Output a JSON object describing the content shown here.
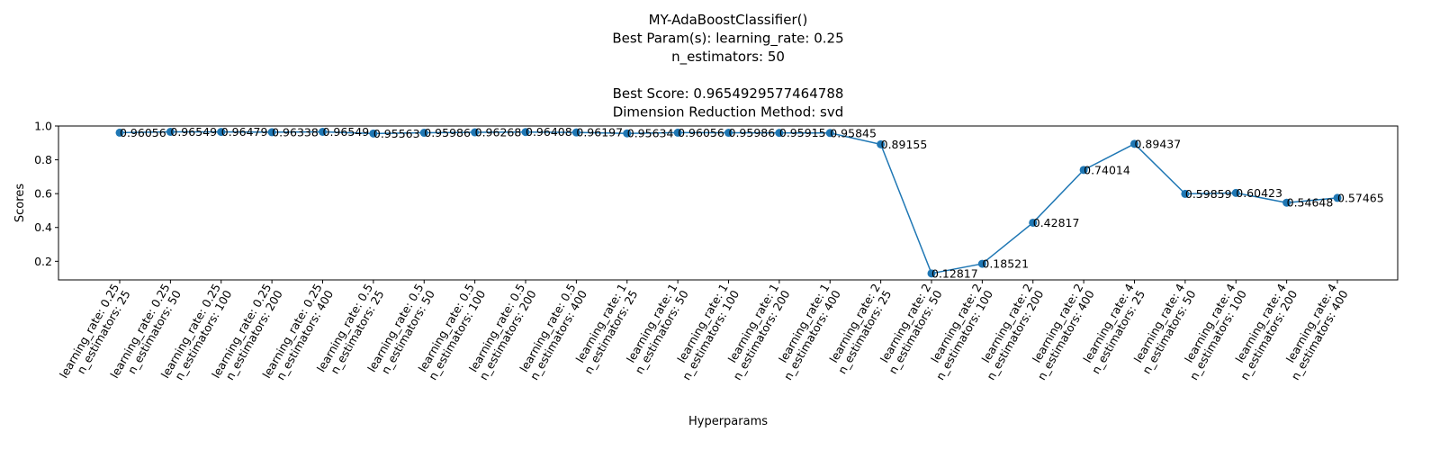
{
  "chart_data": {
    "type": "line",
    "title_lines": [
      "MY-AdaBoostClassifier()",
      "Best Param(s): learning_rate: 0.25",
      "n_estimators: 50",
      "",
      "Best Score: 0.9654929577464788",
      "Dimension Reduction Method: svd"
    ],
    "xlabel": "Hyperparams",
    "ylabel": "Scores",
    "ylim": [
      0.09,
      1.0
    ],
    "yticks": [
      0.2,
      0.4,
      0.6,
      0.8,
      1.0
    ],
    "ytick_labels": [
      "0.2",
      "0.4",
      "0.6",
      "0.8",
      "1.0"
    ],
    "grid": false,
    "series_color": "#1f77b4",
    "categories": [
      [
        "learning_rate: 0.25",
        "n_estimators: 25"
      ],
      [
        "learning_rate: 0.25",
        "n_estimators: 50"
      ],
      [
        "learning_rate: 0.25",
        "n_estimators: 100"
      ],
      [
        "learning_rate: 0.25",
        "n_estimators: 200"
      ],
      [
        "learning_rate: 0.25",
        "n_estimators: 400"
      ],
      [
        "learning_rate: 0.5",
        "n_estimators: 25"
      ],
      [
        "learning_rate: 0.5",
        "n_estimators: 50"
      ],
      [
        "learning_rate: 0.5",
        "n_estimators: 100"
      ],
      [
        "learning_rate: 0.5",
        "n_estimators: 200"
      ],
      [
        "learning_rate: 0.5",
        "n_estimators: 400"
      ],
      [
        "learning_rate: 1",
        "n_estimators: 25"
      ],
      [
        "learning_rate: 1",
        "n_estimators: 50"
      ],
      [
        "learning_rate: 1",
        "n_estimators: 100"
      ],
      [
        "learning_rate: 1",
        "n_estimators: 200"
      ],
      [
        "learning_rate: 1",
        "n_estimators: 400"
      ],
      [
        "learning_rate: 2",
        "n_estimators: 25"
      ],
      [
        "learning_rate: 2",
        "n_estimators: 50"
      ],
      [
        "learning_rate: 2",
        "n_estimators: 100"
      ],
      [
        "learning_rate: 2",
        "n_estimators: 200"
      ],
      [
        "learning_rate: 2",
        "n_estimators: 400"
      ],
      [
        "learning_rate: 4",
        "n_estimators: 25"
      ],
      [
        "learning_rate: 4",
        "n_estimators: 50"
      ],
      [
        "learning_rate: 4",
        "n_estimators: 100"
      ],
      [
        "learning_rate: 4",
        "n_estimators: 200"
      ],
      [
        "learning_rate: 4",
        "n_estimators: 400"
      ]
    ],
    "values": [
      0.96056,
      0.96549,
      0.96479,
      0.96338,
      0.96549,
      0.95563,
      0.95986,
      0.96268,
      0.96408,
      0.96197,
      0.95634,
      0.96056,
      0.95986,
      0.95915,
      0.95845,
      0.89155,
      0.12817,
      0.18521,
      0.42817,
      0.74014,
      0.89437,
      0.59859,
      0.60423,
      0.54648,
      0.57465
    ],
    "value_labels": [
      "0.96056",
      "0.96549",
      "0.96479",
      "0.96338",
      "0.96549",
      "0.95563",
      "0.95986",
      "0.96268",
      "0.96408",
      "0.96197",
      "0.95634",
      "0.96056",
      "0.95986",
      "0.95915",
      "0.95845",
      "0.89155",
      "0.12817",
      "0.18521",
      "0.42817",
      "0.74014",
      "0.89437",
      "0.59859",
      "0.60423",
      "0.54648",
      "0.57465"
    ]
  }
}
